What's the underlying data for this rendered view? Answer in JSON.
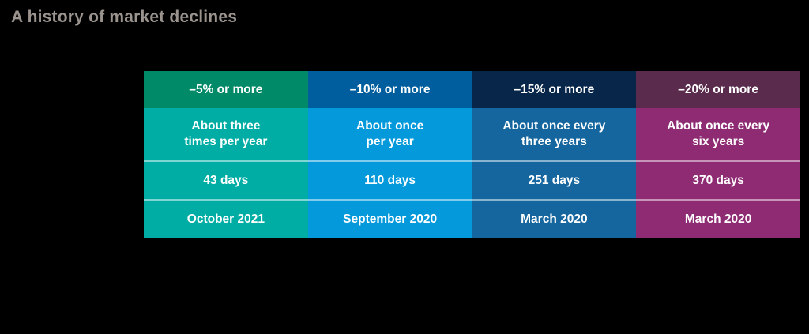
{
  "title": "A history of market declines",
  "colors": {
    "background": "#000000",
    "title_text": "#9a938e",
    "cell_text": "#ffffff",
    "row_separator": "rgba(255,255,255,0.5)"
  },
  "table": {
    "columns": [
      {
        "header": "–5% or more",
        "header_color": "#008a68",
        "body_color": "#00ada4",
        "frequency_line1": "About three",
        "frequency_line2": "times per year",
        "length": "43 days",
        "last": "October 2021"
      },
      {
        "header": "–10% or more",
        "header_color": "#005e9e",
        "body_color": "#0399db",
        "frequency_line1": "About once",
        "frequency_line2": "per year",
        "length": "110 days",
        "last": "September 2020"
      },
      {
        "header": "–15% or more",
        "header_color": "#07264a",
        "body_color": "#15669f",
        "frequency_line1": "About once every",
        "frequency_line2": "three years",
        "length": "251 days",
        "last": "March 2020"
      },
      {
        "header": "–20% or more",
        "header_color": "#5a2b4d",
        "body_color": "#8e2b73",
        "frequency_line1": "About once every",
        "frequency_line2": "six years",
        "length": "370 days",
        "last": "March 2020"
      }
    ]
  },
  "chart_data": {
    "type": "table",
    "title": "A history of market declines",
    "columns": [
      "–5% or more",
      "–10% or more",
      "–15% or more",
      "–20% or more"
    ],
    "rows": [
      [
        "About three times per year",
        "About once per year",
        "About once every three years",
        "About once every six years"
      ],
      [
        "43 days",
        "110 days",
        "251 days",
        "370 days"
      ],
      [
        "October 2021",
        "September 2020",
        "March 2020",
        "March 2020"
      ]
    ]
  }
}
